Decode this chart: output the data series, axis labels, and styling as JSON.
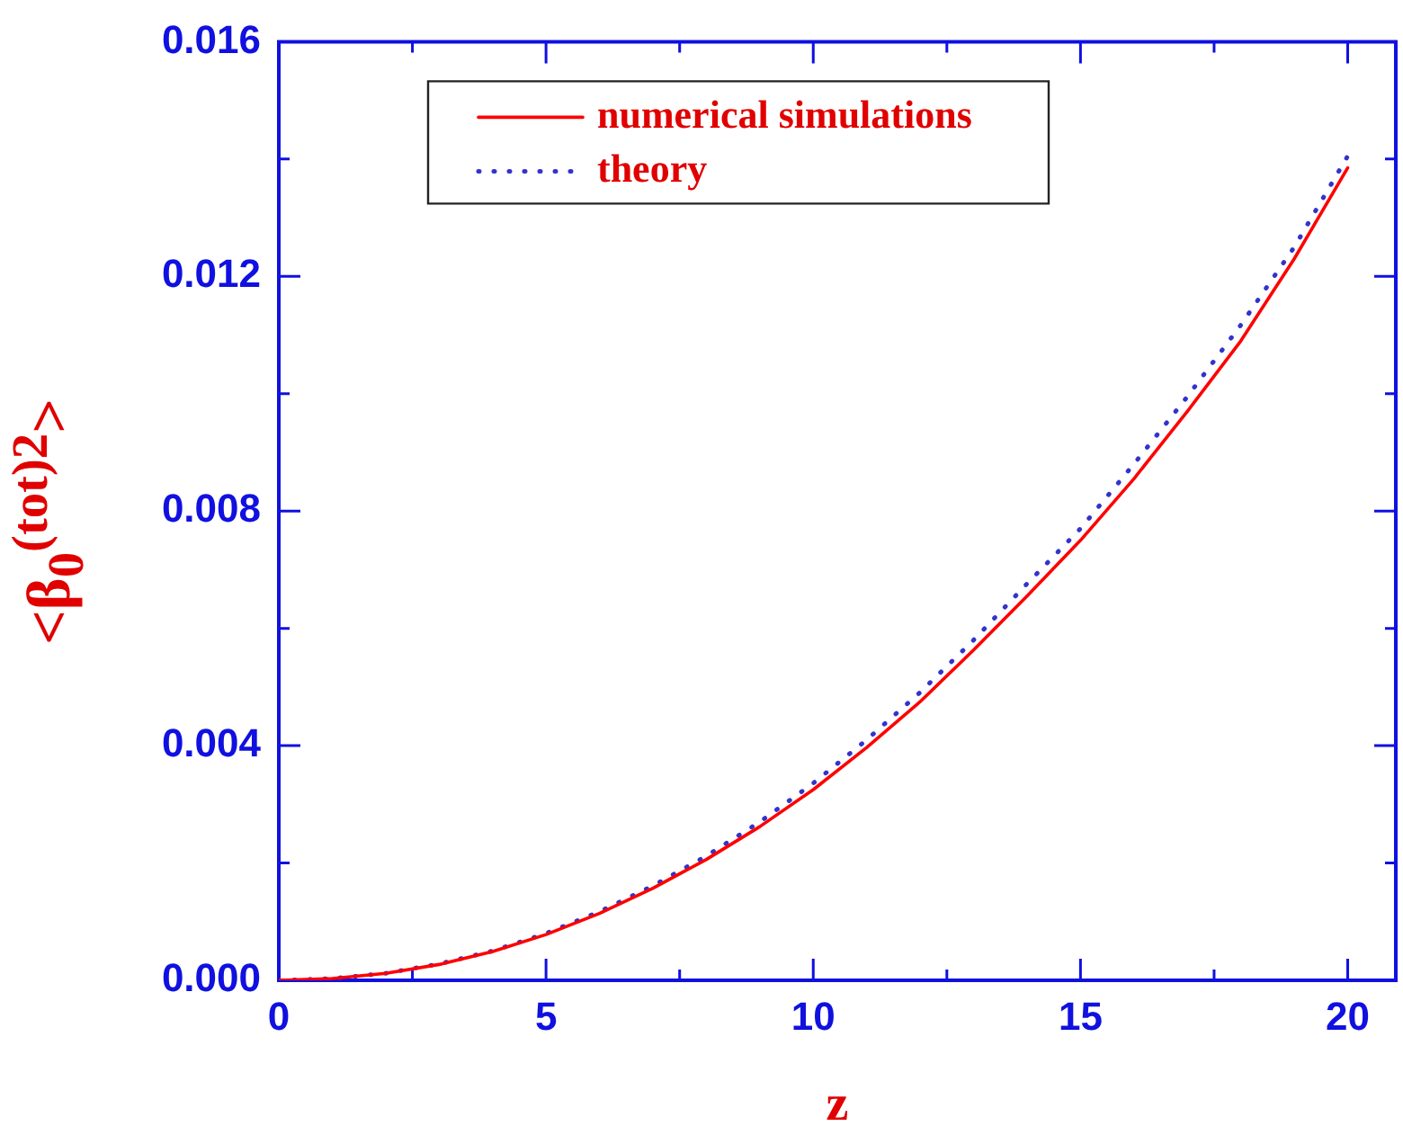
{
  "chart_data": {
    "type": "line",
    "xlabel": "z",
    "ylabel": "<β$_{0}$$^{(tot)2}$>",
    "xlim": [
      0,
      20.9
    ],
    "xticks": [
      0,
      {
        "value": 2.5,
        "label": null
      },
      5,
      {
        "value": 7.5,
        "label": null
      },
      10,
      {
        "value": 12.5,
        "label": null
      },
      15,
      {
        "value": 17.5,
        "label": null
      },
      20
    ],
    "ylim": [
      0,
      0.016
    ],
    "yticks": [
      "0.000",
      {
        "value": 0.002,
        "label": null
      },
      {
        "value": 0.004,
        "label": "0.004"
      },
      {
        "value": 0.006,
        "label": null
      },
      {
        "value": 0.008,
        "label": "0.008"
      },
      {
        "value": 0.01,
        "label": null
      },
      {
        "value": 0.012,
        "label": "0.012"
      },
      {
        "value": 0.014,
        "label": null
      },
      {
        "value": 0.016,
        "label": "0.016"
      }
    ],
    "x": [
      0,
      1,
      2,
      3,
      4,
      5,
      6,
      7,
      8,
      9,
      10,
      11,
      12,
      13,
      14,
      15,
      16,
      17,
      18,
      19,
      20
    ],
    "legend": "top",
    "grid": false,
    "marker": "none",
    "series": [
      {
        "name": "numerical simulations",
        "color": "#ff0000",
        "line_style": "solid",
        "values": [
          0,
          3e-05,
          0.00012,
          0.00027,
          0.00049,
          0.00078,
          0.00114,
          0.00157,
          0.00206,
          0.00262,
          0.00325,
          0.00397,
          0.00475,
          0.00563,
          0.00655,
          0.0075,
          0.00855,
          0.0097,
          0.0109,
          0.0123,
          0.01385
        ]
      },
      {
        "name": "theory",
        "color": "#3333cc",
        "line_style": "dotted",
        "values": [
          0,
          3e-05,
          0.00012,
          0.00028,
          0.0005,
          0.0008,
          0.00117,
          0.00161,
          0.00212,
          0.0027,
          0.00336,
          0.0041,
          0.00491,
          0.0058,
          0.00676,
          0.0077,
          0.0088,
          0.00995,
          0.01117,
          0.0125,
          0.01405
        ]
      }
    ]
  }
}
